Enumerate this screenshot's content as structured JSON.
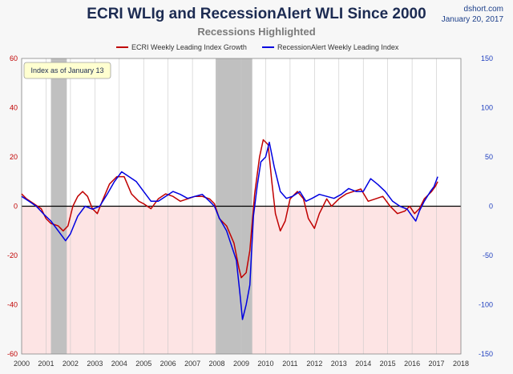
{
  "header": {
    "title": "ECRI WLIg and RecessionAlert WLI Since 2000",
    "subtitle": "Recessions Highlighted",
    "source": "dshort.com",
    "date": "January 20, 2017"
  },
  "annotation": "Index as of January 13",
  "colors": {
    "ecri": "#c00000",
    "ra": "#0000e0",
    "recession": "#c0c0c0",
    "negative_zone": "#fde4e4",
    "left_axis": "#c00000",
    "right_axis": "#1f3fbf"
  },
  "chart_data": {
    "type": "line",
    "title": "ECRI WLIg and RecessionAlert WLI Since 2000",
    "subtitle": "Recessions Highlighted",
    "x_ticks": [
      "2000",
      "2001",
      "2002",
      "2003",
      "2004",
      "2005",
      "2006",
      "2007",
      "2008",
      "2009",
      "2010",
      "2011",
      "2012",
      "2013",
      "2014",
      "2015",
      "2016",
      "2017",
      "2018"
    ],
    "xlim": [
      2000,
      2018
    ],
    "y_left": {
      "ticks": [
        "60",
        "40",
        "20",
        "0",
        "-20",
        "-40",
        "-60"
      ],
      "range": [
        -60,
        60
      ]
    },
    "y_right": {
      "ticks": [
        "150",
        "100",
        "50",
        "0",
        "-50",
        "-100",
        "-150"
      ],
      "range": [
        -150,
        150
      ]
    },
    "grid": "vertical",
    "legend_position": "top",
    "recessions": [
      [
        2001.2,
        2001.85
      ],
      [
        2007.95,
        2009.45
      ]
    ],
    "series": [
      {
        "name": "ECRI Weekly Leading Index Growth",
        "axis": "left",
        "points": [
          [
            2000,
            5
          ],
          [
            2000.2,
            3
          ],
          [
            2000.5,
            1
          ],
          [
            2000.8,
            -1
          ],
          [
            2001.0,
            -5
          ],
          [
            2001.2,
            -7
          ],
          [
            2001.5,
            -8
          ],
          [
            2001.7,
            -10
          ],
          [
            2001.9,
            -8
          ],
          [
            2002.1,
            0
          ],
          [
            2002.3,
            4
          ],
          [
            2002.5,
            6
          ],
          [
            2002.7,
            4
          ],
          [
            2002.9,
            -1
          ],
          [
            2003.1,
            -3
          ],
          [
            2003.3,
            2
          ],
          [
            2003.6,
            9
          ],
          [
            2003.9,
            12
          ],
          [
            2004.2,
            12
          ],
          [
            2004.5,
            5
          ],
          [
            2004.8,
            2
          ],
          [
            2005.0,
            1
          ],
          [
            2005.3,
            -1
          ],
          [
            2005.6,
            3
          ],
          [
            2005.9,
            5
          ],
          [
            2006.2,
            4
          ],
          [
            2006.5,
            2
          ],
          [
            2006.8,
            3
          ],
          [
            2007.1,
            4
          ],
          [
            2007.4,
            4
          ],
          [
            2007.7,
            3
          ],
          [
            2007.9,
            1
          ],
          [
            2008.1,
            -5
          ],
          [
            2008.4,
            -8
          ],
          [
            2008.7,
            -15
          ],
          [
            2008.9,
            -25
          ],
          [
            2009.0,
            -29
          ],
          [
            2009.2,
            -27
          ],
          [
            2009.35,
            -18
          ],
          [
            2009.55,
            5
          ],
          [
            2009.75,
            20
          ],
          [
            2009.9,
            27
          ],
          [
            2010.1,
            25
          ],
          [
            2010.25,
            10
          ],
          [
            2010.4,
            -3
          ],
          [
            2010.6,
            -10
          ],
          [
            2010.8,
            -6
          ],
          [
            2011.0,
            3
          ],
          [
            2011.3,
            6
          ],
          [
            2011.55,
            3
          ],
          [
            2011.75,
            -5
          ],
          [
            2012.0,
            -9
          ],
          [
            2012.2,
            -3
          ],
          [
            2012.5,
            3
          ],
          [
            2012.7,
            0
          ],
          [
            2013.0,
            3
          ],
          [
            2013.3,
            5
          ],
          [
            2013.6,
            6
          ],
          [
            2013.9,
            7
          ],
          [
            2014.2,
            2
          ],
          [
            2014.5,
            3
          ],
          [
            2014.8,
            4
          ],
          [
            2015.1,
            0
          ],
          [
            2015.4,
            -3
          ],
          [
            2015.7,
            -2
          ],
          [
            2015.9,
            0
          ],
          [
            2016.1,
            -3
          ],
          [
            2016.3,
            -1
          ],
          [
            2016.5,
            3
          ],
          [
            2016.8,
            6
          ],
          [
            2016.95,
            8
          ],
          [
            2017.05,
            10
          ]
        ]
      },
      {
        "name": "RecessionAlert Weekly Leading Index",
        "axis": "right",
        "points": [
          [
            2000,
            10
          ],
          [
            2000.3,
            5
          ],
          [
            2000.6,
            0
          ],
          [
            2000.9,
            -8
          ],
          [
            2001.2,
            -15
          ],
          [
            2001.5,
            -25
          ],
          [
            2001.8,
            -35
          ],
          [
            2002.0,
            -28
          ],
          [
            2002.3,
            -10
          ],
          [
            2002.6,
            0
          ],
          [
            2002.9,
            -3
          ],
          [
            2003.2,
            0
          ],
          [
            2003.5,
            12
          ],
          [
            2003.8,
            25
          ],
          [
            2004.1,
            35
          ],
          [
            2004.4,
            30
          ],
          [
            2004.7,
            25
          ],
          [
            2005.0,
            15
          ],
          [
            2005.3,
            5
          ],
          [
            2005.6,
            5
          ],
          [
            2005.9,
            10
          ],
          [
            2006.2,
            15
          ],
          [
            2006.5,
            12
          ],
          [
            2006.8,
            8
          ],
          [
            2007.1,
            10
          ],
          [
            2007.4,
            12
          ],
          [
            2007.7,
            5
          ],
          [
            2007.9,
            0
          ],
          [
            2008.1,
            -12
          ],
          [
            2008.4,
            -25
          ],
          [
            2008.6,
            -40
          ],
          [
            2008.8,
            -55
          ],
          [
            2008.95,
            -90
          ],
          [
            2009.05,
            -115
          ],
          [
            2009.2,
            -100
          ],
          [
            2009.35,
            -80
          ],
          [
            2009.5,
            -10
          ],
          [
            2009.65,
            20
          ],
          [
            2009.8,
            45
          ],
          [
            2010.0,
            50
          ],
          [
            2010.15,
            65
          ],
          [
            2010.35,
            40
          ],
          [
            2010.6,
            15
          ],
          [
            2010.85,
            8
          ],
          [
            2011.1,
            10
          ],
          [
            2011.4,
            15
          ],
          [
            2011.65,
            5
          ],
          [
            2011.9,
            8
          ],
          [
            2012.2,
            12
          ],
          [
            2012.5,
            10
          ],
          [
            2012.8,
            8
          ],
          [
            2013.1,
            12
          ],
          [
            2013.4,
            18
          ],
          [
            2013.7,
            15
          ],
          [
            2014.0,
            15
          ],
          [
            2014.3,
            28
          ],
          [
            2014.6,
            22
          ],
          [
            2014.9,
            15
          ],
          [
            2015.2,
            5
          ],
          [
            2015.5,
            0
          ],
          [
            2015.8,
            -3
          ],
          [
            2016.0,
            -10
          ],
          [
            2016.15,
            -15
          ],
          [
            2016.3,
            -5
          ],
          [
            2016.5,
            5
          ],
          [
            2016.75,
            15
          ],
          [
            2016.9,
            20
          ],
          [
            2017.05,
            30
          ]
        ]
      }
    ]
  }
}
